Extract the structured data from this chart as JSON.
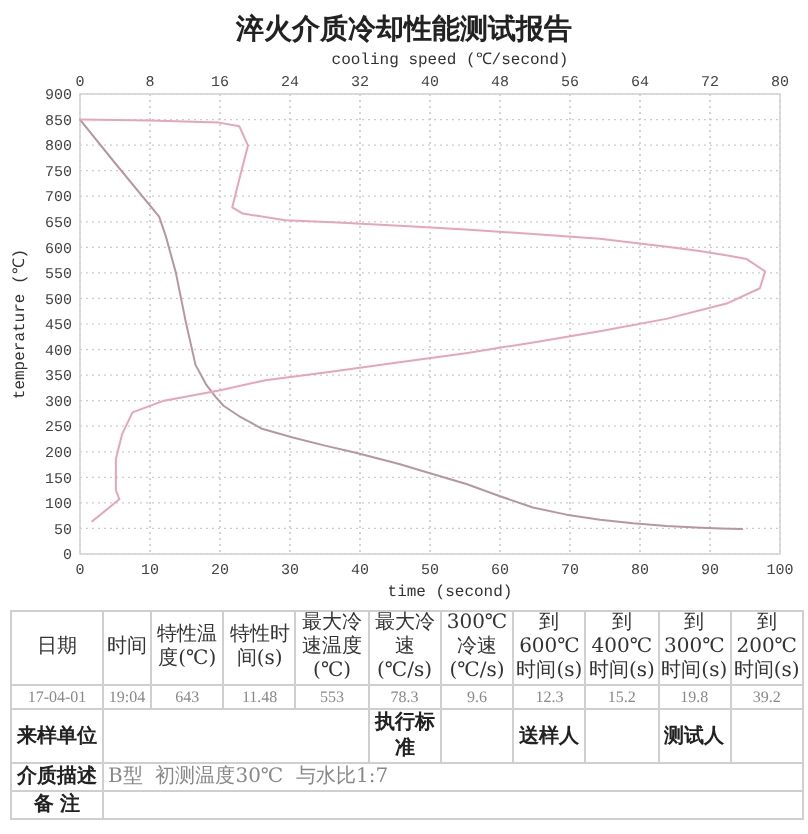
{
  "chart_data": {
    "type": "line",
    "title": "淬火介质冷却性能测试报告",
    "xlabel": "time (second)",
    "x2label": "cooling speed (℃/second)",
    "ylabel": "temperature (℃)",
    "xlim": [
      0,
      100
    ],
    "xticks": [
      0,
      10,
      20,
      30,
      40,
      50,
      60,
      70,
      80,
      90,
      100
    ],
    "x2lim": [
      0,
      80
    ],
    "x2ticks": [
      0,
      8,
      16,
      24,
      32,
      40,
      48,
      56,
      64,
      72,
      80
    ],
    "ylim": [
      0,
      900
    ],
    "yticks": [
      0,
      50,
      100,
      150,
      200,
      250,
      300,
      350,
      400,
      450,
      500,
      550,
      600,
      650,
      700,
      750,
      800,
      850,
      900
    ],
    "grid": true,
    "series": [
      {
        "color": "#b7979f",
        "x": [
          0,
          5,
          11.3,
          12.3,
          13.7,
          15.1,
          16.5,
          18,
          19.4,
          20.5,
          22.7,
          26,
          30.4,
          35,
          39.4,
          45.6,
          50,
          55.2,
          60,
          64.7,
          69.5,
          74.3,
          79,
          83.8,
          88,
          91.5,
          94.6
        ],
        "values": [
          850,
          765,
          660,
          620,
          550,
          455,
          370,
          332,
          307,
          290,
          270,
          245,
          228,
          212,
          198,
          176,
          158,
          137,
          113,
          91,
          77,
          67,
          60,
          55,
          52,
          50,
          49
        ]
      },
      {
        "color": "#e8a5b5",
        "axis": "x2",
        "x": [
          0,
          8,
          15.9,
          18.2,
          19.2,
          18.2,
          17.4,
          18.6,
          23.5,
          28.9,
          36.5,
          44.1,
          51.8,
          59.4,
          67.1,
          70.8,
          74,
          76.2,
          78.3,
          77.7,
          73.9,
          67,
          59.4,
          51.8,
          44.1,
          36.5,
          28.9,
          21.2,
          15.9,
          9.6,
          6,
          4.8,
          4.1,
          4.1,
          4.5,
          1.4
        ],
        "values": [
          850,
          848,
          844,
          837,
          799,
          733,
          678,
          666,
          653,
          649,
          642,
          635,
          626,
          617,
          601,
          593,
          584,
          577,
          553,
          520,
          490,
          460,
          436,
          414,
          393,
          375,
          357,
          340,
          320,
          300,
          277,
          234,
          186,
          125,
          107,
          64
        ]
      }
    ],
    "annotations": [
      "日期",
      "时间",
      "特性温度(℃)",
      "特性时间(s)",
      "最大冷速温度(℃)",
      "最大冷速(℃/s)",
      "300℃冷速(℃/s)",
      "到600℃时间(s)",
      "到400℃时间(s)",
      "到300℃时间(s)",
      "到200℃时间(s)",
      "17-04-01",
      "19:04",
      "643",
      "11.48",
      "553",
      "78.3",
      "9.6",
      "12.3",
      "15.2",
      "19.8",
      "39.2",
      "来样单位",
      "执行标准",
      "送样人",
      "测试人",
      "介质描述",
      "B型  初测温度30℃  与水比1:7",
      "备 注"
    ]
  }
}
